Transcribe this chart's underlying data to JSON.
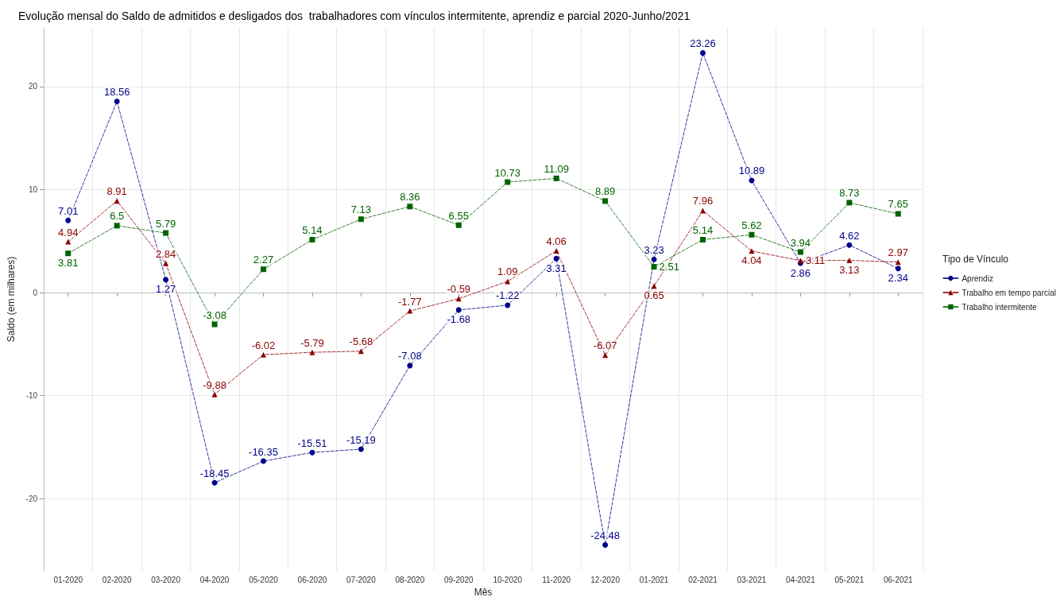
{
  "chart_data": {
    "type": "line",
    "title": "Evolução mensal do Saldo de admitidos e desligados dos  trabalhadores com vínculos intermitente, aprendiz e parcial 2020-Junho/2021",
    "xlabel": "Mês",
    "ylabel": "Saldo (em milhares)",
    "legend_title": "Tipo de Vínculo",
    "categories": [
      "01-2020",
      "02-2020",
      "03-2020",
      "04-2020",
      "05-2020",
      "06-2020",
      "07-2020",
      "08-2020",
      "09-2020",
      "10-2020",
      "11-2020",
      "12-2020",
      "01-2021",
      "02-2021",
      "03-2021",
      "04-2021",
      "05-2021",
      "06-2021"
    ],
    "series": [
      {
        "name": "Aprendiz",
        "color": "#00008b",
        "marker": "circle",
        "values": [
          7.01,
          18.56,
          1.27,
          -18.45,
          -16.35,
          -15.51,
          -15.19,
          -7.08,
          -1.68,
          -1.22,
          3.31,
          -24.48,
          3.23,
          23.26,
          10.89,
          2.86,
          4.62,
          2.34
        ]
      },
      {
        "name": "Trabalho em tempo parcial",
        "color": "#8b0000",
        "marker": "triangle",
        "values": [
          4.94,
          8.91,
          2.84,
          -9.88,
          -6.02,
          -5.79,
          -5.68,
          -1.77,
          -0.59,
          1.09,
          4.06,
          -6.07,
          0.65,
          7.96,
          4.04,
          3.11,
          3.13,
          2.97
        ]
      },
      {
        "name": "Trabalho intermitente",
        "color": "#006400",
        "marker": "square",
        "values": [
          3.81,
          6.5,
          5.79,
          -3.08,
          2.27,
          5.14,
          7.13,
          8.36,
          6.55,
          10.73,
          11.09,
          8.89,
          2.51,
          5.14,
          5.62,
          3.94,
          8.73,
          7.65
        ]
      }
    ],
    "ylim": [
      -27,
      25.7
    ],
    "yticks": [
      -20,
      -10,
      0,
      10,
      20
    ],
    "grid": true,
    "legend": "right",
    "line_style": "dashed",
    "data_labels": true
  }
}
